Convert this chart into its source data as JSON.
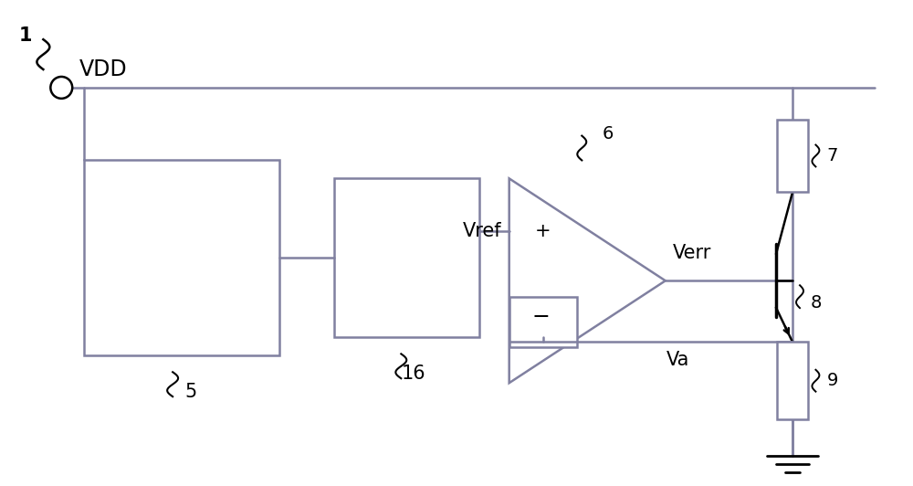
{
  "bg_color": "#ffffff",
  "line_color": "#8080a0",
  "wire_color": "#8080a0",
  "text_color": "#000000",
  "fig_width": 10.0,
  "fig_height": 5.32,
  "dpi": 100,
  "vdd_label": "VDD",
  "label_1": "1",
  "label_5": "5",
  "label_16": "16",
  "label_6": "6",
  "label_7": "7",
  "label_8": "8",
  "label_9": "9",
  "label_vref": "Vref",
  "label_verr": "Verr",
  "label_va": "Va",
  "label_plus": "+",
  "label_minus": "−"
}
